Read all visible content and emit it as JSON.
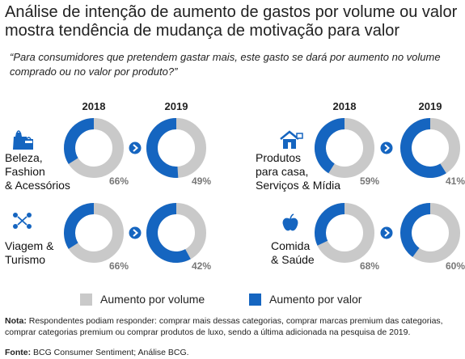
{
  "title": "Análise de intenção de aumento de gastos por volume ou valor mostra tendência de mudança de motivação para valor",
  "subtitle": "“Para consumidores que pretendem gastar mais, este gasto se dará por aumento no volume comprado ou no valor por produto?”",
  "years": [
    "2018",
    "2019",
    "2018",
    "2019"
  ],
  "colors": {
    "volume": "#c9c9c9",
    "valor": "#1565c0",
    "arrow": "#1565c0"
  },
  "categories": [
    {
      "label_lines": [
        "Beleza,",
        "Fashion",
        "& Acessórios"
      ],
      "icon": "shopping-bags-icon"
    },
    {
      "label_lines": [
        "Produtos",
        "para casa,",
        "Serviços & Mídia"
      ],
      "icon": "house-icon"
    },
    {
      "label_lines": [
        "Viagem &",
        "Turismo"
      ],
      "icon": "travel-network-icon"
    },
    {
      "label_lines": [
        "Comida",
        "& Saúde"
      ],
      "icon": "apple-icon"
    }
  ],
  "legend": {
    "volume": "Aumento por volume",
    "valor": "Aumento por valor"
  },
  "note": {
    "label": "Nota:",
    "text": " Respondentes podiam responder: comprar mais dessas categorias, comprar marcas premium das categorias, comprar categorias premium ou comprar produtos de luxo, sendo a última adicionada na pesquisa de 2019."
  },
  "source": {
    "label": "Fonte:",
    "text": " BCG Consumer Sentiment; Análise BCG."
  },
  "chart_data": {
    "type": "pie",
    "variant": "donut",
    "series_names": [
      "Aumento por valor",
      "Aumento por volume"
    ],
    "panels": [
      {
        "category": "Beleza, Fashion & Acessórios",
        "year": "2018",
        "valor": 34,
        "volume": 66,
        "valor_label": "34%",
        "volume_label": "66%"
      },
      {
        "category": "Beleza, Fashion & Acessórios",
        "year": "2019",
        "valor": 51,
        "volume": 49,
        "valor_label": "51%",
        "volume_label": "49%"
      },
      {
        "category": "Produtos para casa, Serviços & Mídia",
        "year": "2018",
        "valor": 41,
        "volume": 59,
        "valor_label": "41%",
        "volume_label": "59%"
      },
      {
        "category": "Produtos para casa, Serviços & Mídia",
        "year": "2019",
        "valor": 59,
        "volume": 41,
        "valor_label": "59%",
        "volume_label": "41%"
      },
      {
        "category": "Viagem & Turismo",
        "year": "2018",
        "valor": 34,
        "volume": 66,
        "valor_label": "34%",
        "volume_label": "66%"
      },
      {
        "category": "Viagem & Turismo",
        "year": "2019",
        "valor": 58,
        "volume": 42,
        "valor_label": "58%",
        "volume_label": "42%"
      },
      {
        "category": "Comida & Saúde",
        "year": "2018",
        "valor": 32,
        "volume": 68,
        "valor_label": "32%",
        "volume_label": "68%"
      },
      {
        "category": "Comida & Saúde",
        "year": "2019",
        "valor": 40,
        "volume": 60,
        "valor_label": "40%",
        "volume_label": "60%"
      }
    ],
    "legend_position": "bottom"
  }
}
